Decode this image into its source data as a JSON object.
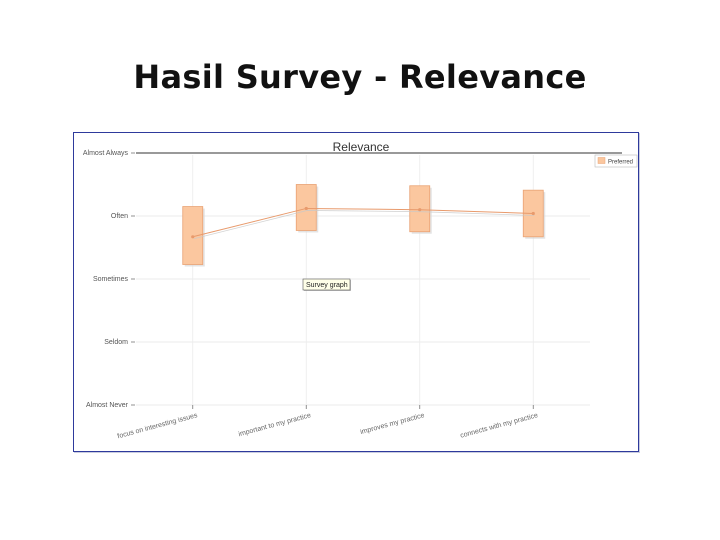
{
  "slide": {
    "title": "Hasil Survey - Relevance"
  },
  "chart_data": {
    "type": "line",
    "title": "Relevance",
    "y_levels": [
      "Almost Never",
      "Seldom",
      "Sometimes",
      "Often",
      "Almost Always"
    ],
    "ylim": [
      1,
      5
    ],
    "categories": [
      "focus on interesting issues",
      "important to my practice",
      "improves my practice",
      "connects with my practice"
    ],
    "series": [
      {
        "name": "Preferred",
        "values": [
          3.67,
          4.12,
          4.1,
          4.04
        ],
        "box_low": [
          3.23,
          3.77,
          3.75,
          3.67
        ],
        "box_high": [
          4.15,
          4.5,
          4.48,
          4.41
        ]
      }
    ],
    "tooltip": "Survey graph",
    "grid": true,
    "legend": "top-right",
    "colors": {
      "box_fill": "#fbc79f",
      "box_edge": "#e9a273",
      "line": "#e89a6c",
      "frame": "#2e3a9c"
    }
  }
}
